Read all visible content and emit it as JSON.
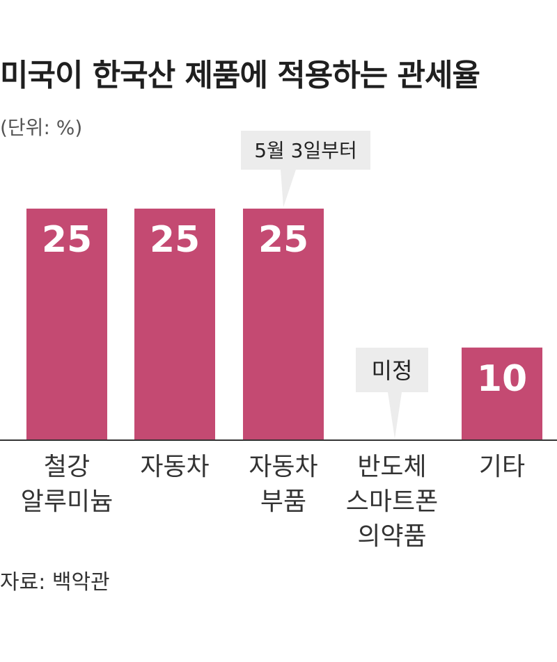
{
  "title": "미국이 한국산 제품에 적용하는 관세율",
  "unit_label": "(단위: %)",
  "source": "자료: 백악관",
  "colors": {
    "bar": "#c44a72",
    "value_text": "#ffffff",
    "callout_bg": "#ececec",
    "axis": "#333333"
  },
  "chart_data": {
    "type": "bar",
    "title": "미국이 한국산 제품에 적용하는 관세율",
    "ylabel": "(단위: %)",
    "xlabel": "",
    "ylim": [
      0,
      25
    ],
    "grid": false,
    "categories": [
      [
        "철강",
        "알루미늄"
      ],
      [
        "자동차"
      ],
      [
        "자동차",
        "부품"
      ],
      [
        "반도체",
        "스마트폰",
        "의약품"
      ],
      [
        "기타"
      ]
    ],
    "values": [
      25,
      25,
      25,
      null,
      10
    ],
    "value_labels": [
      "25",
      "25",
      "25",
      "",
      "10"
    ],
    "annotations": [
      {
        "category_index": 2,
        "text": "5월 3일부터",
        "type": "callout-above"
      },
      {
        "category_index": 3,
        "text": "미정",
        "type": "callout-pointing-to-baseline"
      }
    ]
  }
}
